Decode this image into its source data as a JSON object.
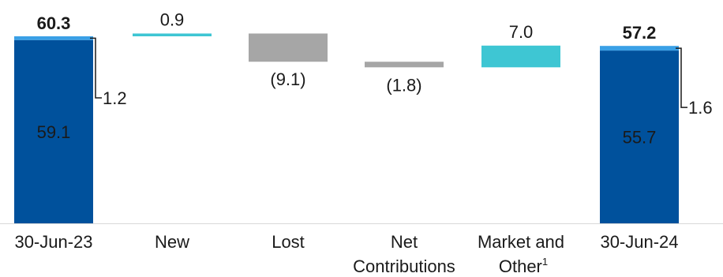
{
  "chart_data": {
    "type": "bar",
    "subtype": "waterfall",
    "categories": [
      [
        "30-Jun-23"
      ],
      [
        "New"
      ],
      [
        "Lost"
      ],
      [
        "Net",
        "Contributions"
      ],
      [
        "Market and",
        "Other"
      ]
    ],
    "end_category": [
      "30-Jun-24"
    ],
    "footnote_marker": "1",
    "start": {
      "base": 59.1,
      "top": 1.2,
      "total": 60.3,
      "base_label": "59.1",
      "top_label": "1.2",
      "total_label": "60.3"
    },
    "end": {
      "base": 55.7,
      "top": 1.6,
      "total": 57.2,
      "base_label": "55.7",
      "top_label": "1.6",
      "total_label": "57.2"
    },
    "changes": [
      {
        "value": 0.9,
        "label": "0.9"
      },
      {
        "value": -9.1,
        "label": "(9.1)"
      },
      {
        "value": -1.8,
        "label": "(1.8)"
      },
      {
        "value": 7.0,
        "label": "7.0"
      }
    ],
    "ylim": [
      0,
      60.3
    ],
    "grid": false,
    "colors": {
      "base": "#00519c",
      "top": "#3aa0e6",
      "increase": "#3ec6d3",
      "decrease": "#a6a6a6",
      "text": "#1a1a1a",
      "axis": "#d9d9d9",
      "leader": "#1a1a1a"
    }
  }
}
